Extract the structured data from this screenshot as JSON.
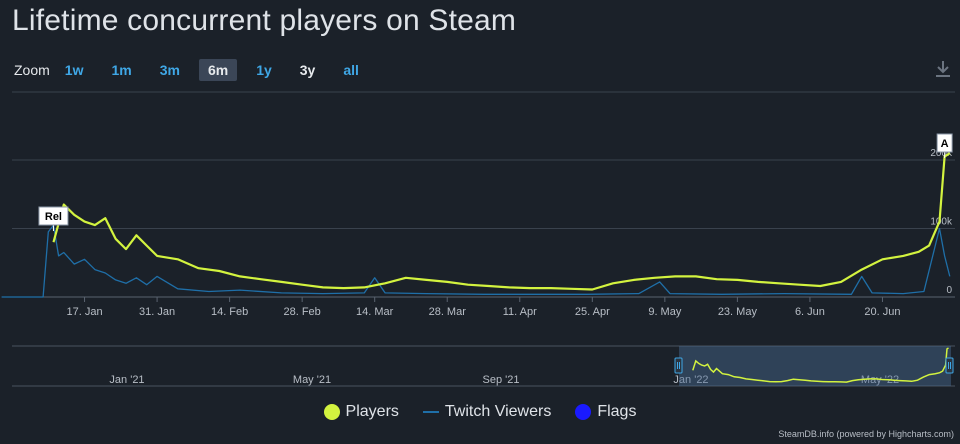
{
  "title": "Lifetime concurrent players on Steam",
  "zoom": {
    "label": "Zoom",
    "buttons": [
      {
        "label": "1w",
        "active": false
      },
      {
        "label": "1m",
        "active": false
      },
      {
        "label": "3m",
        "active": false
      },
      {
        "label": "6m",
        "active": true
      },
      {
        "label": "1y",
        "active": false
      },
      {
        "label": "3y",
        "active": false
      },
      {
        "label": "all",
        "active": false
      }
    ]
  },
  "download_icon": "download-icon",
  "colors": {
    "players": "#d3f33f",
    "twitch": "#1f6fa8",
    "flags": "#1a1aff",
    "grid": "#3a424d",
    "text": "#b8bec6"
  },
  "chart_data": {
    "type": "line",
    "title": "Lifetime concurrent players on Steam",
    "x_axis": {
      "ticks": [
        "17. Jan",
        "31. Jan",
        "14. Feb",
        "28. Feb",
        "14. Mar",
        "28. Mar",
        "11. Apr",
        "25. Apr",
        "9. May",
        "23. May",
        "6. Jun",
        "20. Jun"
      ]
    },
    "y_axis": {
      "ticks": [
        "0",
        "100k",
        "200k"
      ],
      "ylim": [
        0,
        200000
      ]
    },
    "series": [
      {
        "name": "Players",
        "x": [
          "2021-01-11",
          "2021-01-13",
          "2021-01-15",
          "2021-01-17",
          "2021-01-19",
          "2021-01-21",
          "2021-01-23",
          "2021-01-25",
          "2021-01-27",
          "2021-01-29",
          "2021-01-31",
          "2021-02-04",
          "2021-02-08",
          "2021-02-12",
          "2021-02-16",
          "2021-02-20",
          "2021-02-24",
          "2021-02-28",
          "2021-03-04",
          "2021-03-08",
          "2021-03-12",
          "2021-03-16",
          "2021-03-20",
          "2021-03-24",
          "2021-03-28",
          "2021-04-01",
          "2021-04-05",
          "2021-04-09",
          "2021-04-13",
          "2021-04-17",
          "2021-04-21",
          "2021-04-25",
          "2021-04-29",
          "2021-05-03",
          "2021-05-07",
          "2021-05-11",
          "2021-05-15",
          "2021-05-19",
          "2021-05-23",
          "2021-05-27",
          "2021-05-31",
          "2021-06-04",
          "2021-06-08",
          "2021-06-12",
          "2021-06-16",
          "2021-06-20",
          "2021-06-24",
          "2021-06-27",
          "2021-06-29",
          "2021-07-01",
          "2021-07-02",
          "2021-07-03"
        ],
        "y": [
          80000,
          135000,
          120000,
          110000,
          105000,
          115000,
          85000,
          70000,
          90000,
          75000,
          60000,
          55000,
          42000,
          38000,
          30000,
          26000,
          22000,
          18000,
          14000,
          13000,
          14000,
          20000,
          28000,
          25000,
          22000,
          18000,
          16000,
          14000,
          13000,
          13000,
          12000,
          11000,
          20000,
          25000,
          28000,
          30000,
          30000,
          26000,
          25000,
          22000,
          20000,
          18000,
          16000,
          22000,
          40000,
          55000,
          60000,
          66000,
          75000,
          110000,
          205000,
          210000
        ]
      },
      {
        "name": "Twitch Viewers",
        "x": [
          "2021-01-01",
          "2021-01-09",
          "2021-01-10",
          "2021-01-11",
          "2021-01-12",
          "2021-01-13",
          "2021-01-15",
          "2021-01-17",
          "2021-01-19",
          "2021-01-21",
          "2021-01-23",
          "2021-01-25",
          "2021-01-27",
          "2021-01-29",
          "2021-01-31",
          "2021-02-04",
          "2021-02-10",
          "2021-02-16",
          "2021-02-24",
          "2021-03-04",
          "2021-03-12",
          "2021-03-14",
          "2021-03-16",
          "2021-03-24",
          "2021-04-04",
          "2021-04-14",
          "2021-04-24",
          "2021-05-04",
          "2021-05-08",
          "2021-05-10",
          "2021-05-20",
          "2021-06-01",
          "2021-06-14",
          "2021-06-16",
          "2021-06-18",
          "2021-06-24",
          "2021-06-28",
          "2021-07-01",
          "2021-07-02",
          "2021-07-03"
        ],
        "y": [
          0,
          0,
          95000,
          105000,
          60000,
          65000,
          48000,
          55000,
          40000,
          35000,
          25000,
          20000,
          28000,
          18000,
          30000,
          12000,
          8000,
          10000,
          6000,
          5000,
          6000,
          28000,
          6000,
          5000,
          4000,
          4000,
          4000,
          5000,
          22000,
          5000,
          4000,
          5000,
          4000,
          30000,
          6000,
          5000,
          8000,
          100000,
          60000,
          30000
        ]
      },
      {
        "name": "Flags"
      }
    ],
    "flags": [
      {
        "label": "Rel",
        "x": "2021-01-11"
      },
      {
        "label": "A",
        "x": "2021-07-02"
      }
    ],
    "navigator": {
      "ticks": [
        "Jan '21",
        "May '21",
        "Sep '21",
        "Jan '22",
        "May '22"
      ]
    }
  },
  "credit": "SteamDB.info (powered by Highcharts.com)"
}
